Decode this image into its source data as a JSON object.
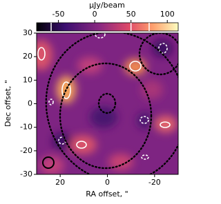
{
  "chart_data": {
    "type": "image",
    "xlabel": "RA offset, \"",
    "ylabel": "Dec offset, \"",
    "xlim": [
      30,
      -30
    ],
    "xticks": [
      20,
      0,
      -20
    ],
    "ylim": [
      -30,
      30
    ],
    "yticks": [
      -30,
      -20,
      -10,
      0,
      10,
      20,
      30
    ],
    "colorbar": {
      "label": "μJy/beam",
      "lim": [
        -80,
        115
      ],
      "ticks": [
        -50,
        0,
        50,
        100
      ],
      "contour_levels": [
        -60,
        50,
        75
      ]
    }
  }
}
